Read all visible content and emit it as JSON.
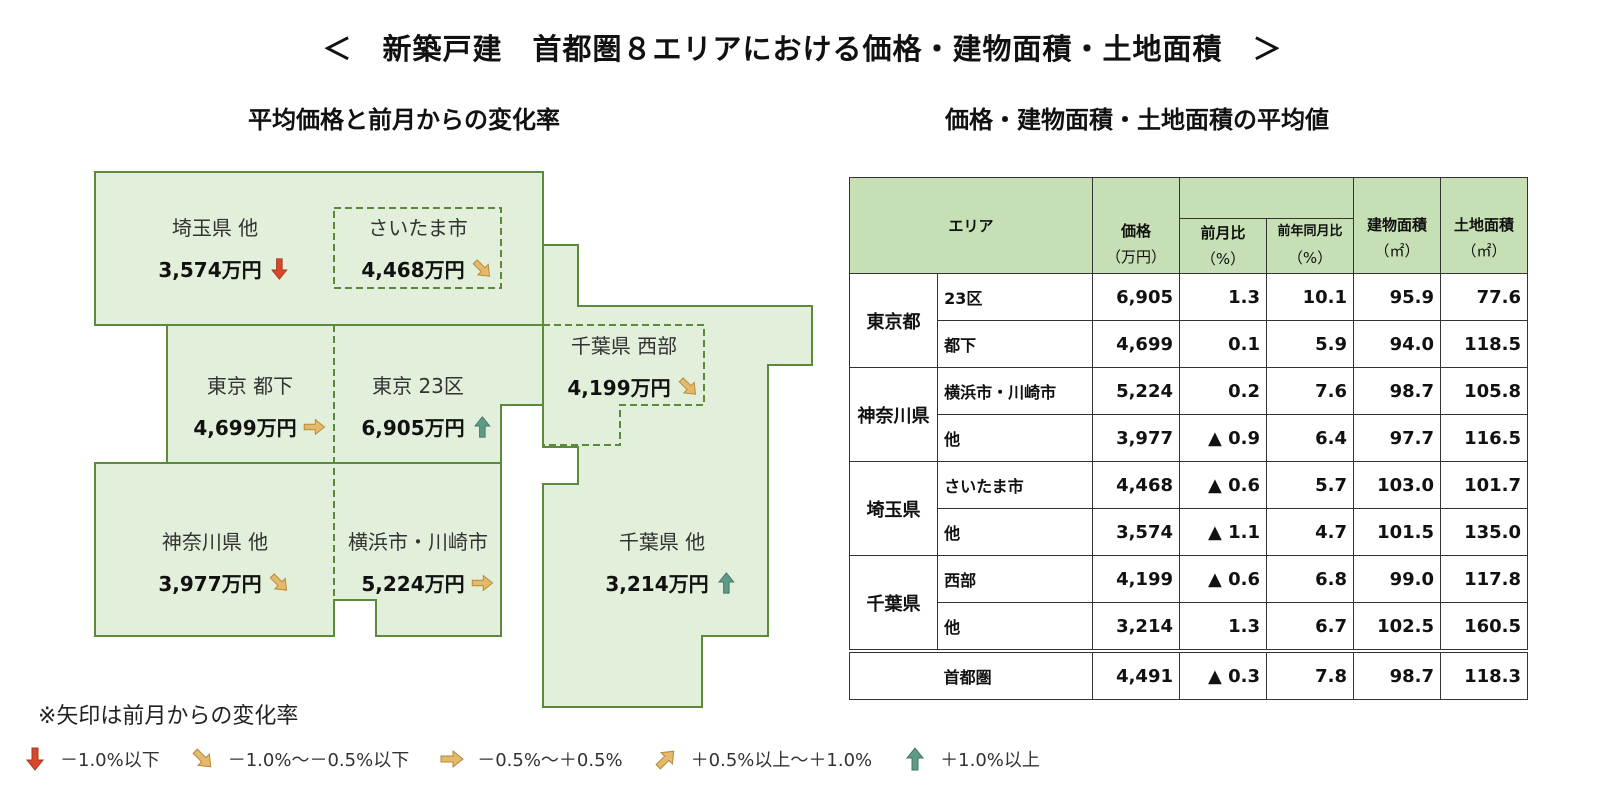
{
  "title": "＜　新築戸建　首都圏８エリアにおける価格・建物面積・土地面積　＞",
  "left_title": "平均価格と前月からの変化率",
  "right_title": "価格・建物面積・土地面積の平均値",
  "colors": {
    "map_fill": "#e2efda",
    "map_stroke": "#5b8a3c",
    "header_fill": "#c6dfb4",
    "down": "#d9472b",
    "down_slight": "#e6b86a",
    "flat": "#e6b86a",
    "up_slight": "#e6b86a",
    "up": "#5e9a85"
  },
  "map": {
    "saitama_other": {
      "label": "埼玉県 他",
      "value": "3,574万円",
      "arrow": "down"
    },
    "saitama_city": {
      "label": "さいたま市",
      "value": "4,468万円",
      "arrow": "down-slight"
    },
    "tokyo_tama": {
      "label": "東京 都下",
      "value": "4,699万円",
      "arrow": "flat"
    },
    "tokyo_23": {
      "label": "東京 23区",
      "value": "6,905万円",
      "arrow": "up"
    },
    "chiba_west": {
      "label": "千葉県 西部",
      "value": "4,199万円",
      "arrow": "down-slight"
    },
    "kanagawa_other": {
      "label": "神奈川県 他",
      "value": "3,977万円",
      "arrow": "down-slight"
    },
    "yokohama": {
      "label": "横浜市・川崎市",
      "value": "5,224万円",
      "arrow": "flat"
    },
    "chiba_other": {
      "label": "千葉県 他",
      "value": "3,214万円",
      "arrow": "up"
    }
  },
  "table": {
    "headers": {
      "area": "エリア",
      "price": "価格",
      "price_unit": "（万円）",
      "mom": "前月比",
      "mom_unit": "（%）",
      "yoy": "前年同月比",
      "yoy_unit": "（%）",
      "building": "建物面積",
      "building_unit": "（㎡）",
      "land": "土地面積",
      "land_unit": "（㎡）"
    },
    "groups": [
      {
        "pref": "東京都",
        "rows": [
          [
            "23区",
            "6,905",
            "1.3",
            "10.1",
            "95.9",
            "77.6"
          ],
          [
            "都下",
            "4,699",
            "0.1",
            "5.9",
            "94.0",
            "118.5"
          ]
        ]
      },
      {
        "pref": "神奈川県",
        "rows": [
          [
            "横浜市・川崎市",
            "5,224",
            "0.2",
            "7.6",
            "98.7",
            "105.8"
          ],
          [
            "他",
            "3,977",
            "▲ 0.9",
            "6.4",
            "97.7",
            "116.5"
          ]
        ]
      },
      {
        "pref": "埼玉県",
        "rows": [
          [
            "さいたま市",
            "4,468",
            "▲ 0.6",
            "5.7",
            "103.0",
            "101.7"
          ],
          [
            "他",
            "3,574",
            "▲ 1.1",
            "4.7",
            "101.5",
            "135.0"
          ]
        ]
      },
      {
        "pref": "千葉県",
        "rows": [
          [
            "西部",
            "4,199",
            "▲ 0.6",
            "6.8",
            "99.0",
            "117.8"
          ],
          [
            "他",
            "3,214",
            "1.3",
            "6.7",
            "102.5",
            "160.5"
          ]
        ]
      }
    ],
    "total": [
      "首都圏",
      "4,491",
      "▲ 0.3",
      "7.8",
      "98.7",
      "118.3"
    ]
  },
  "note": "※矢印は前月からの変化率",
  "legend": [
    {
      "arrow": "down",
      "label": "－1.0%以下"
    },
    {
      "arrow": "down-slight",
      "label": "－1.0%～－0.5%以下"
    },
    {
      "arrow": "flat",
      "label": "－0.5%～＋0.5%"
    },
    {
      "arrow": "up-slight",
      "label": "＋0.5%以上～＋1.0%"
    },
    {
      "arrow": "up",
      "label": "＋1.0%以上"
    }
  ]
}
